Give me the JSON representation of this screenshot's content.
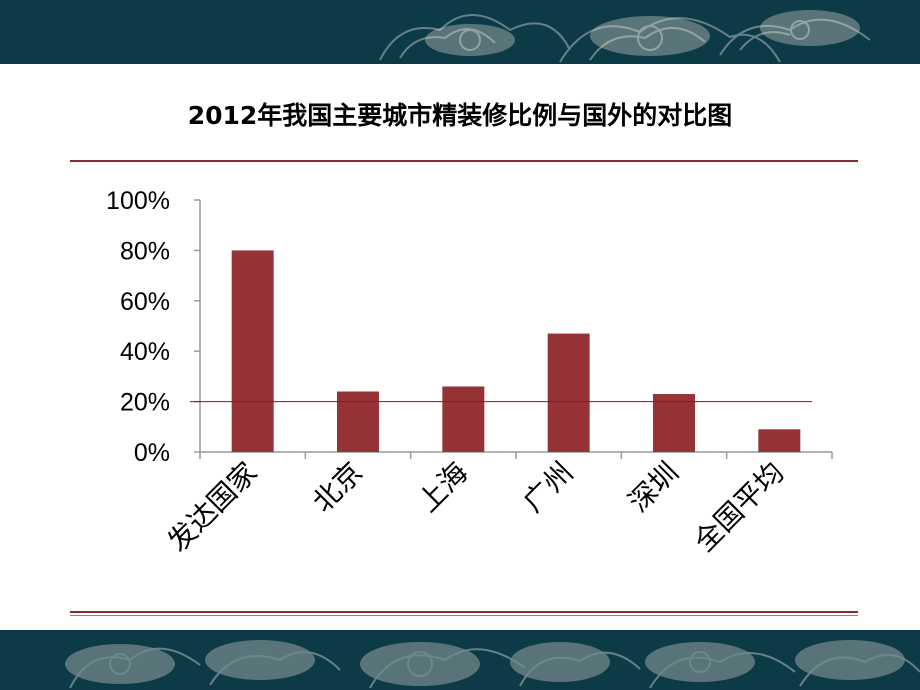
{
  "chart_data": {
    "type": "bar",
    "title": "2012年我国主要城市精装修比例与国外的对比图",
    "categories": [
      "发达国家",
      "北京",
      "上海",
      "广州",
      "深圳",
      "全国平均"
    ],
    "values": [
      80,
      24,
      26,
      47,
      23,
      9
    ],
    "ylim": [
      0,
      100
    ],
    "yticks": [
      "0%",
      "20%",
      "40%",
      "60%",
      "80%",
      "100%"
    ],
    "reference_line": 20,
    "xlabel": "",
    "ylabel": "",
    "grid": false,
    "colors": {
      "bar": "#953336",
      "reference_line": "#c00000",
      "axis": "#9a9a9a",
      "band": "#0d3a47",
      "rule": "#8b2a2f"
    }
  }
}
